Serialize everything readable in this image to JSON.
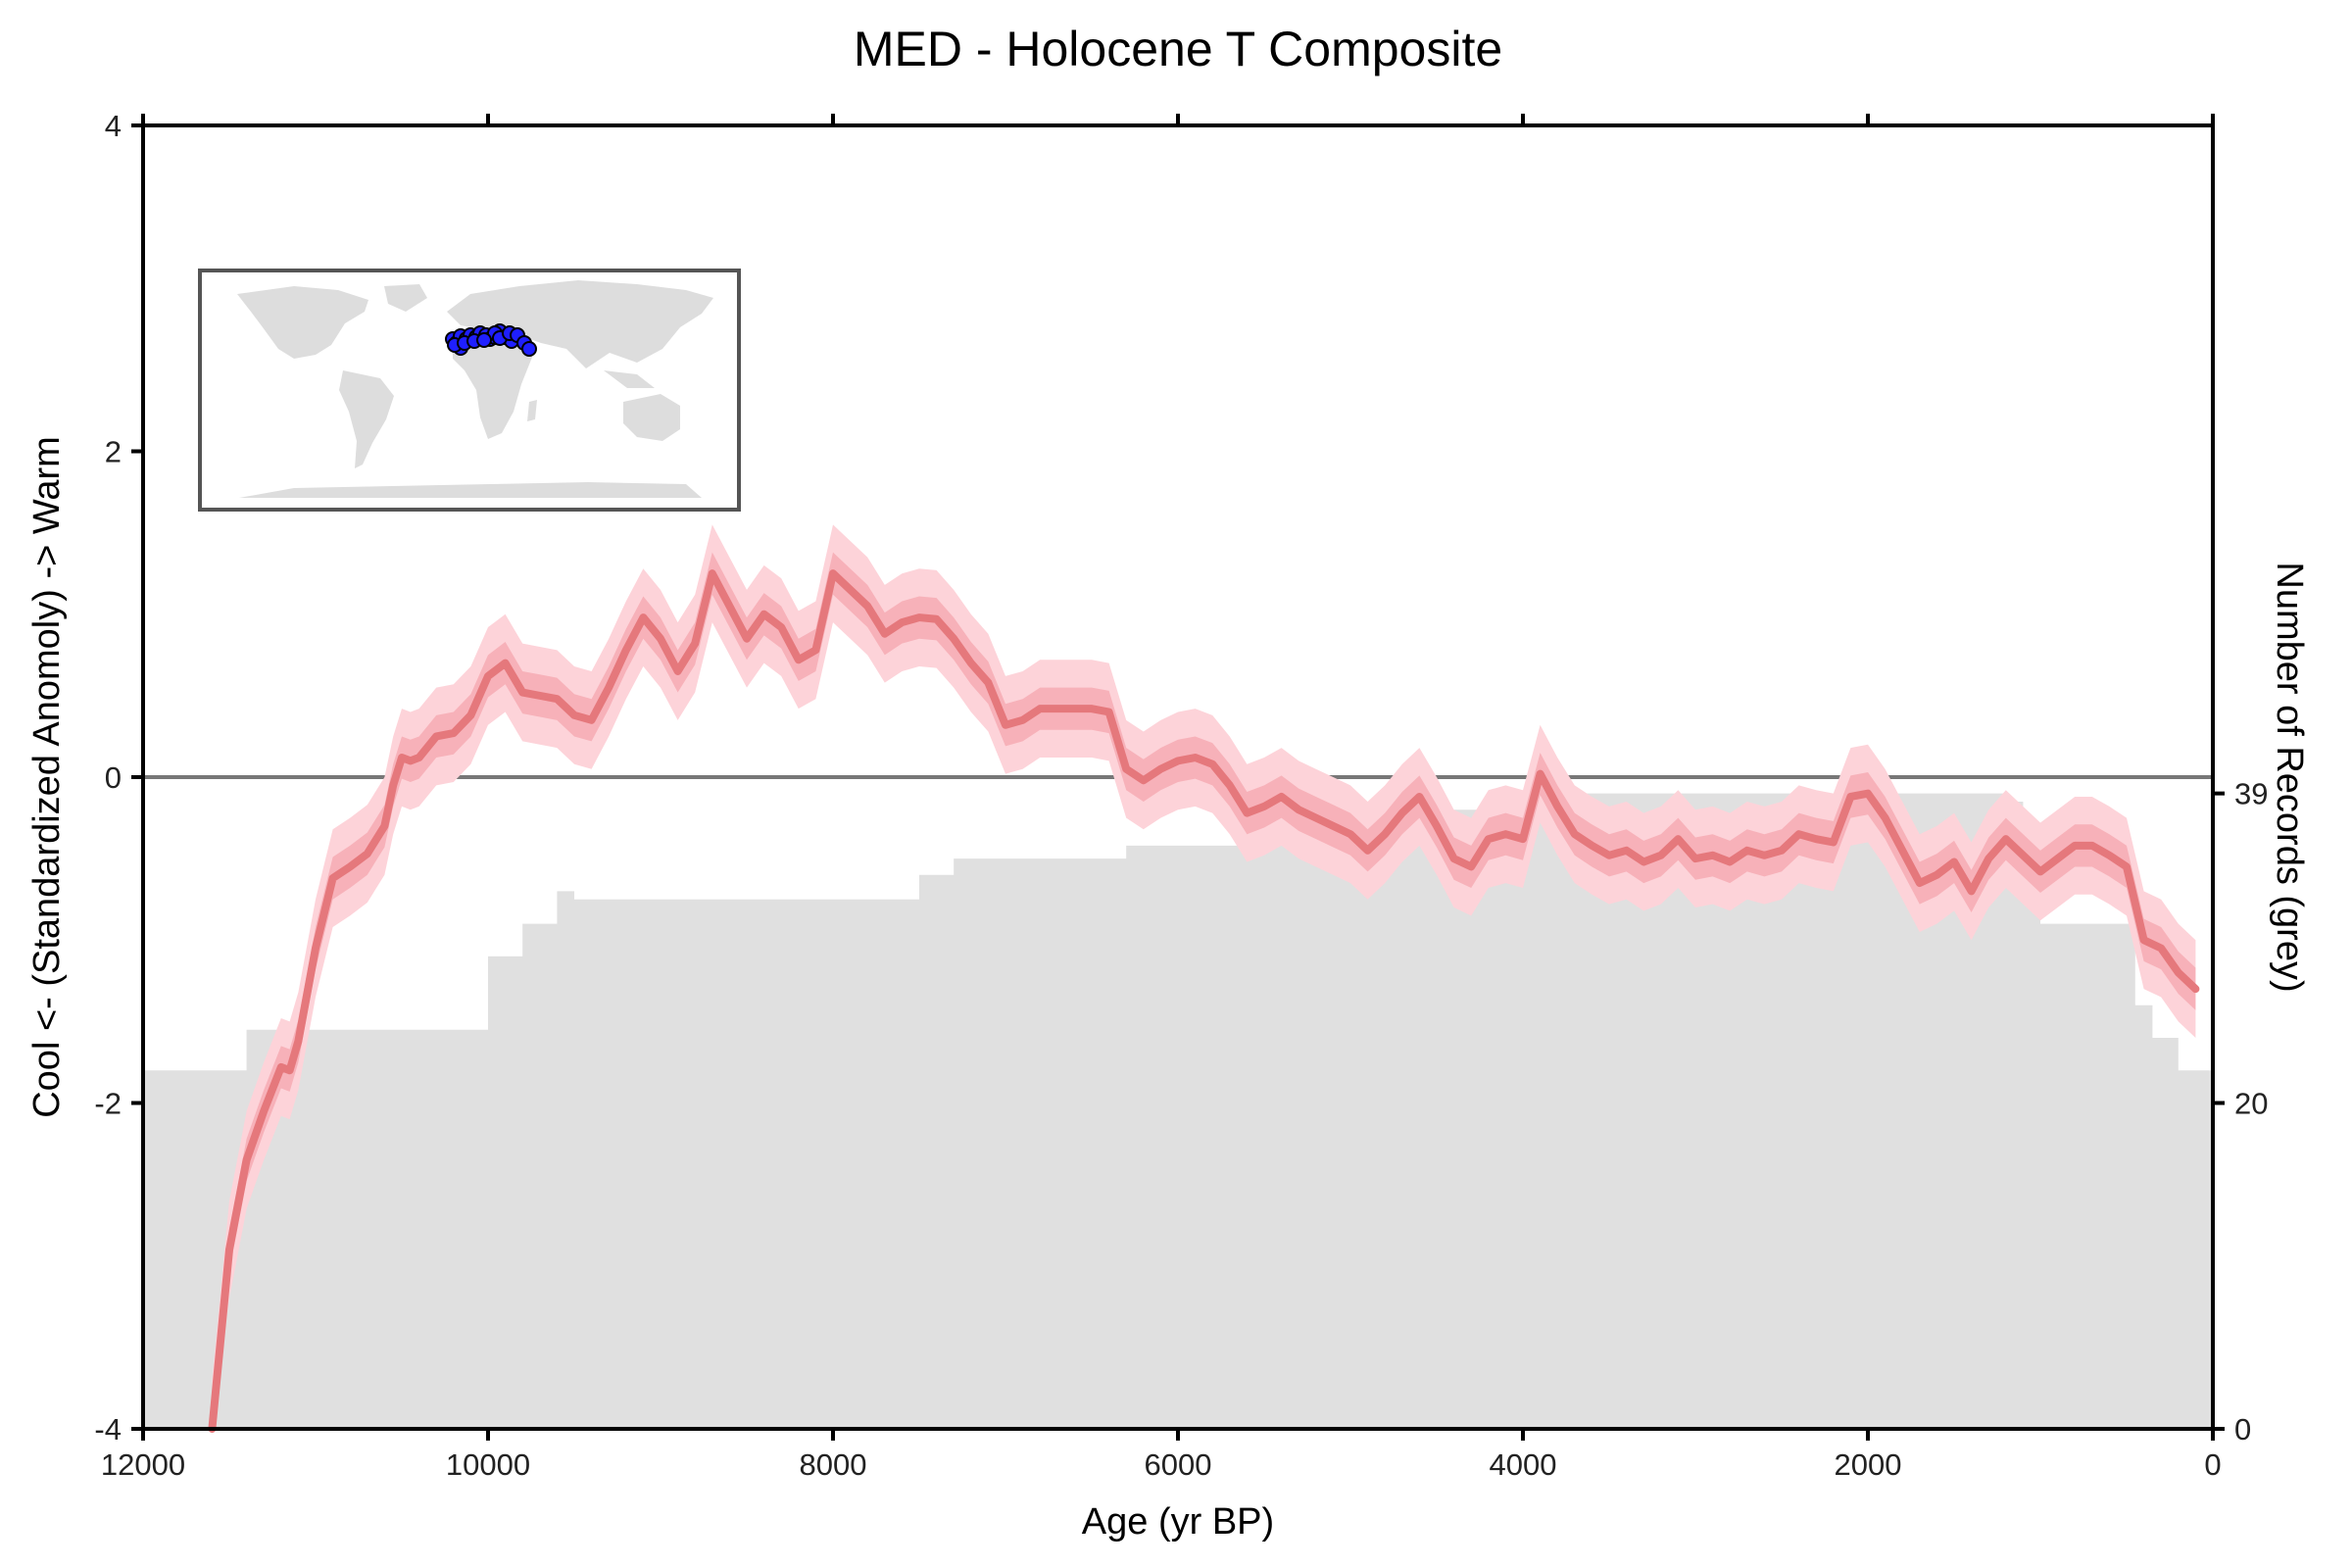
{
  "chart_data": {
    "type": "line",
    "title": "MED - Holocene T Composite",
    "xlabel": "Age (yr BP)",
    "ylabel": "Cool <- (Standardized Anomoly) -> Warm",
    "y2label": "Number of Records (grey)",
    "xlim": [
      12000,
      0
    ],
    "ylim": [
      -4,
      4
    ],
    "y2lim": [
      0,
      80
    ],
    "x_ticks": [
      "12000",
      "10000",
      "8000",
      "6000",
      "4000",
      "2000",
      "0"
    ],
    "y_ticks": [
      "-4",
      "-2",
      "0",
      "2",
      "4"
    ],
    "y2_ticks": [
      "0",
      "20",
      "39"
    ],
    "grid": false,
    "zero_line": true,
    "colors": {
      "line": "#e5787c",
      "band_inner": "#f4a6ad",
      "band_outer": "#fdd3d9",
      "records": "#e0e0e0",
      "zero_line": "#777777",
      "map_land": "#dddddd",
      "site_marker": "#1f1fff"
    },
    "series": [
      {
        "x": [
          11600,
          11500,
          11400,
          11300,
          11200,
          11150,
          11100,
          11000,
          10900,
          10800,
          10700,
          10600,
          10550,
          10500,
          10450,
          10400,
          10300,
          10200,
          10100,
          10000,
          9900,
          9800,
          9700,
          9600,
          9500,
          9400,
          9300,
          9200,
          9100,
          9000,
          8900,
          8800,
          8700,
          8600,
          8500,
          8400,
          8300,
          8200,
          8100,
          8000,
          7900,
          7800,
          7700,
          7600,
          7500,
          7400,
          7300,
          7200,
          7100,
          7000,
          6900,
          6800,
          6700,
          6600,
          6500,
          6400,
          6300,
          6200,
          6100,
          6000,
          5900,
          5800,
          5700,
          5600,
          5500,
          5400,
          5300,
          5200,
          5100,
          5000,
          4900,
          4800,
          4700,
          4600,
          4500,
          4400,
          4300,
          4200,
          4100,
          4000,
          3900,
          3800,
          3700,
          3600,
          3500,
          3400,
          3300,
          3200,
          3100,
          3000,
          2900,
          2800,
          2700,
          2600,
          2500,
          2400,
          2300,
          2200,
          2100,
          2000,
          1900,
          1800,
          1700,
          1600,
          1500,
          1400,
          1300,
          1200,
          1100,
          1000,
          900,
          800,
          700,
          600,
          500,
          400,
          300,
          200,
          100
        ],
        "y": [
          -4.0,
          -2.9,
          -2.35,
          -2.05,
          -1.78,
          -1.8,
          -1.62,
          -1.05,
          -0.62,
          -0.55,
          -0.47,
          -0.3,
          -0.05,
          0.12,
          0.1,
          0.12,
          0.25,
          0.27,
          0.38,
          0.62,
          0.7,
          0.52,
          0.5,
          0.48,
          0.38,
          0.35,
          0.55,
          0.78,
          0.98,
          0.85,
          0.65,
          0.82,
          1.25,
          1.05,
          0.85,
          1.0,
          0.92,
          0.72,
          0.78,
          1.25,
          1.15,
          1.05,
          0.88,
          0.95,
          0.98,
          0.97,
          0.85,
          0.7,
          0.58,
          0.32,
          0.35,
          0.42,
          0.42,
          0.42,
          0.42,
          0.4,
          0.05,
          -0.02,
          0.05,
          0.1,
          0.12,
          0.08,
          -0.05,
          -0.22,
          -0.18,
          -0.12,
          -0.2,
          -0.25,
          -0.3,
          -0.35,
          -0.45,
          -0.35,
          -0.22,
          -0.12,
          -0.3,
          -0.5,
          -0.55,
          -0.38,
          -0.35,
          -0.38,
          0.02,
          -0.18,
          -0.35,
          -0.42,
          -0.48,
          -0.45,
          -0.52,
          -0.48,
          -0.38,
          -0.5,
          -0.48,
          -0.52,
          -0.45,
          -0.48,
          -0.45,
          -0.35,
          -0.38,
          -0.4,
          -0.12,
          -0.1,
          -0.25,
          -0.45,
          -0.65,
          -0.6,
          -0.52,
          -0.7,
          -0.5,
          -0.38,
          -0.48,
          -0.58,
          -0.5,
          -0.42,
          -0.42,
          -0.48,
          -0.55,
          -1.0,
          -1.05,
          -1.2,
          -1.3
        ]
      }
    ],
    "records": {
      "x": [
        12000,
        11400,
        10200,
        10000,
        9800,
        9600,
        9500,
        8100,
        7500,
        7300,
        6400,
        6300,
        5400,
        5200,
        4700,
        4600,
        4500,
        4400,
        3950,
        1300,
        1200,
        1100,
        1000,
        800,
        450,
        350,
        200,
        0
      ],
      "y": [
        22,
        24.5,
        24.5,
        29,
        31,
        33,
        32.5,
        32.5,
        34,
        35,
        35,
        35.8,
        35.8,
        37,
        37,
        38,
        37,
        38,
        39,
        39,
        38.5,
        36,
        31,
        31,
        26,
        24,
        22,
        20
      ]
    }
  }
}
